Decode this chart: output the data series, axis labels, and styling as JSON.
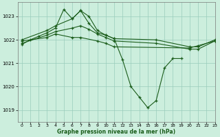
{
  "title": "Graphe pression niveau de la mer (hPa)",
  "bg_color": "#cceedd",
  "grid_color": "#99ccbb",
  "line_color": "#1a5c1a",
  "marker_color": "#1a5c1a",
  "xlim": [
    -0.5,
    23
  ],
  "ylim": [
    1018.5,
    1023.6
  ],
  "yticks": [
    1019,
    1020,
    1021,
    1022,
    1023
  ],
  "xtick_labels": [
    "0",
    "1",
    "2",
    "3",
    "4",
    "5",
    "6",
    "7",
    "8",
    "9",
    "10",
    "11",
    "12",
    "13",
    "14",
    "15",
    "16",
    "17",
    "18",
    "19",
    "20",
    "21",
    "22",
    "23"
  ],
  "xticks": [
    0,
    1,
    2,
    3,
    4,
    5,
    6,
    7,
    8,
    9,
    10,
    11,
    12,
    13,
    14,
    15,
    16,
    17,
    18,
    19,
    20,
    21,
    22,
    23
  ],
  "series": [
    {
      "points": [
        [
          0,
          1021.8
        ],
        [
          1,
          1022.0
        ],
        [
          2,
          1022.15
        ],
        [
          3,
          1022.3
        ],
        [
          4,
          1022.5
        ],
        [
          5,
          1023.3
        ],
        [
          6,
          1022.9
        ],
        [
          7,
          1023.25
        ],
        [
          8,
          1022.7
        ],
        [
          9,
          1022.3
        ],
        [
          10,
          1022.2
        ],
        [
          11,
          1022.05
        ],
        [
          12,
          1021.15
        ],
        [
          13,
          1020.0
        ],
        [
          14,
          1019.55
        ],
        [
          15,
          1019.1
        ],
        [
          16,
          1019.4
        ],
        [
          17,
          1020.8
        ],
        [
          18,
          1021.2
        ],
        [
          19,
          1021.2
        ]
      ],
      "connected": true
    },
    {
      "points": [
        [
          0,
          1022.0
        ],
        [
          3,
          1022.4
        ],
        [
          4,
          1022.6
        ],
        [
          6,
          1022.9
        ],
        [
          7,
          1023.25
        ],
        [
          8,
          1023.0
        ],
        [
          9,
          1022.4
        ],
        [
          10,
          1022.2
        ],
        [
          11,
          1022.05
        ],
        [
          16,
          1022.0
        ],
        [
          20,
          1021.7
        ],
        [
          21,
          1021.7
        ],
        [
          23,
          1022.0
        ]
      ],
      "connected": false
    },
    {
      "points": [
        [
          0,
          1021.95
        ],
        [
          3,
          1022.1
        ],
        [
          4,
          1022.25
        ],
        [
          6,
          1022.1
        ],
        [
          7,
          1022.1
        ],
        [
          9,
          1021.95
        ],
        [
          10,
          1021.85
        ],
        [
          11,
          1021.7
        ],
        [
          20,
          1021.65
        ],
        [
          21,
          1021.75
        ],
        [
          23,
          1021.95
        ]
      ],
      "connected": false
    },
    {
      "points": [
        [
          0,
          1021.85
        ],
        [
          3,
          1022.2
        ],
        [
          4,
          1022.35
        ],
        [
          6,
          1022.5
        ],
        [
          7,
          1022.6
        ],
        [
          8,
          1022.45
        ],
        [
          9,
          1022.25
        ],
        [
          10,
          1022.1
        ],
        [
          11,
          1021.95
        ],
        [
          16,
          1021.85
        ],
        [
          20,
          1021.6
        ],
        [
          21,
          1021.6
        ],
        [
          23,
          1021.95
        ]
      ],
      "connected": false
    }
  ]
}
